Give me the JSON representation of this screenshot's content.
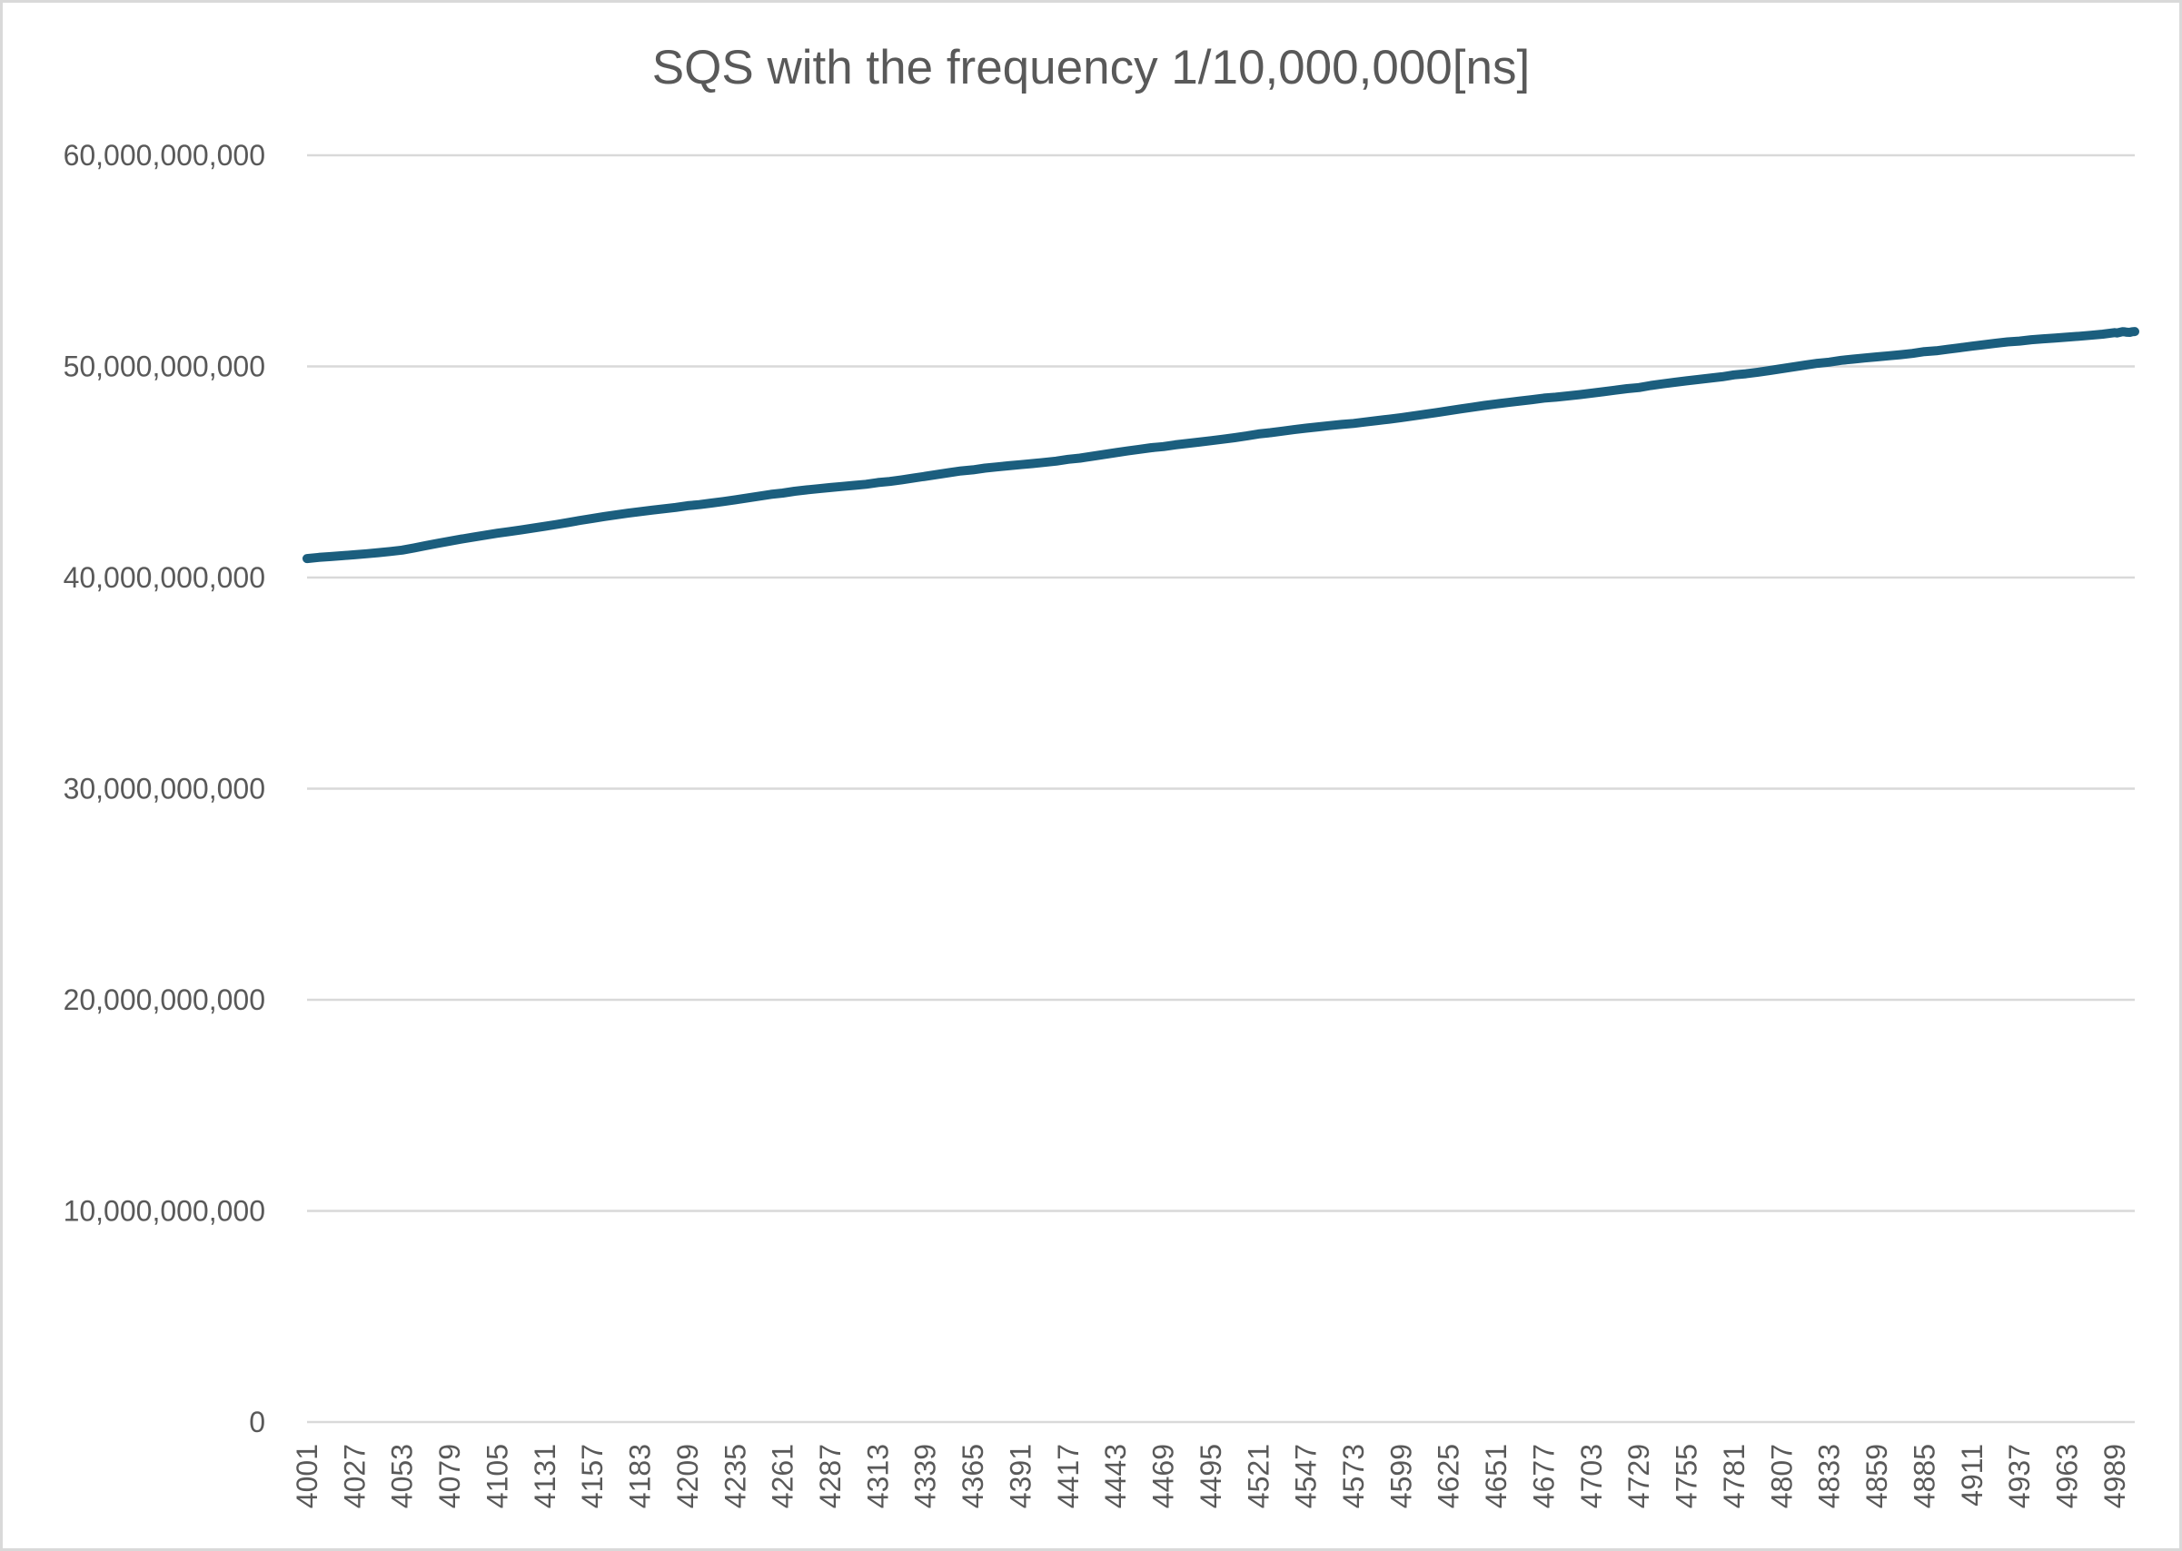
{
  "chart_data": {
    "type": "line",
    "title": "SQS with the frequency 1/10,000,000[ns]",
    "xlabel": "",
    "ylabel": "",
    "x_start": 4001,
    "x_end": 5000,
    "x_tick_labels": [
      "4001",
      "4027",
      "4053",
      "4079",
      "4105",
      "4131",
      "4157",
      "4183",
      "4209",
      "4235",
      "4261",
      "4287",
      "4313",
      "4339",
      "4365",
      "4391",
      "4417",
      "4443",
      "4469",
      "4495",
      "4521",
      "4547",
      "4573",
      "4599",
      "4625",
      "4651",
      "4677",
      "4703",
      "4729",
      "4755",
      "4781",
      "4807",
      "4833",
      "4859",
      "4885",
      "4911",
      "4937",
      "4963",
      "4989"
    ],
    "y_tick_labels": [
      "0",
      "10,000,000,000",
      "20,000,000,000",
      "30,000,000,000",
      "40,000,000,000",
      "50,000,000,000",
      "60,000,000,000"
    ],
    "ylim": [
      0,
      60000000000
    ],
    "y_step": 10000000000,
    "grid": true,
    "legend": "none",
    "series": [
      {
        "color": "#1b5e7e",
        "points": [
          [
            4001,
            40900000000
          ],
          [
            4053,
            41300000000
          ],
          [
            4105,
            42100000000
          ],
          [
            4157,
            42800000000
          ],
          [
            4209,
            43400000000
          ],
          [
            4261,
            44000000000
          ],
          [
            4313,
            44500000000
          ],
          [
            4365,
            45100000000
          ],
          [
            4417,
            45600000000
          ],
          [
            4469,
            46200000000
          ],
          [
            4521,
            46800000000
          ],
          [
            4573,
            47300000000
          ],
          [
            4625,
            47900000000
          ],
          [
            4677,
            48500000000
          ],
          [
            4729,
            49000000000
          ],
          [
            4781,
            49600000000
          ],
          [
            4833,
            50200000000
          ],
          [
            4885,
            50700000000
          ],
          [
            4937,
            51200000000
          ],
          [
            4989,
            51600000000
          ],
          [
            5000,
            51650000000
          ]
        ]
      }
    ]
  }
}
